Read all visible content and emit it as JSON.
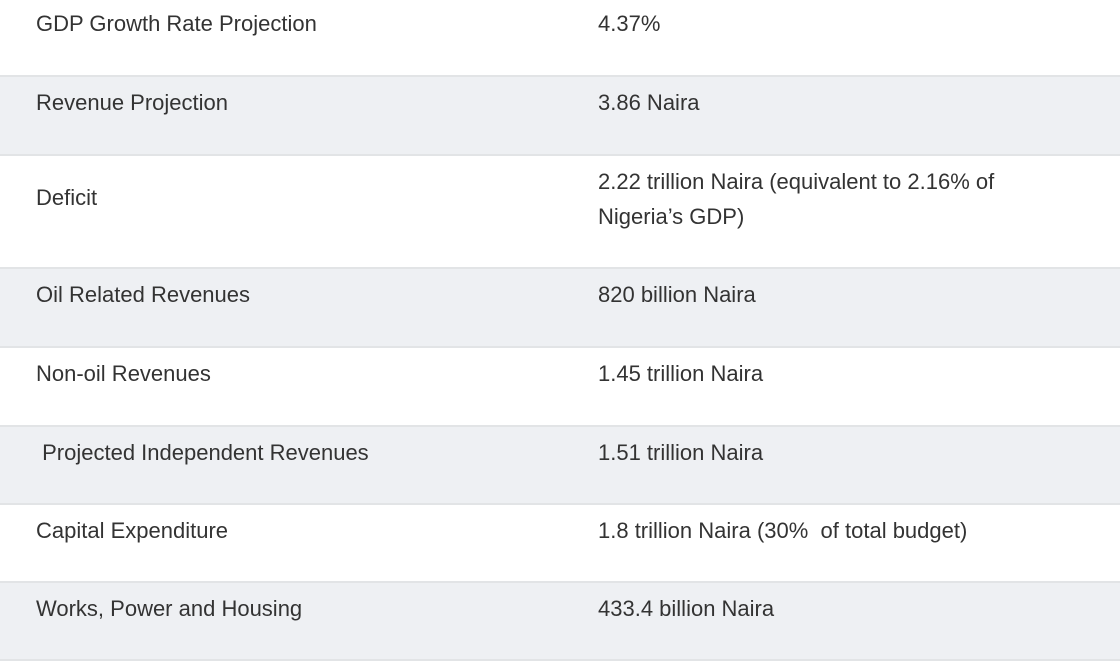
{
  "rows": [
    {
      "label": "GDP Growth Rate Projection",
      "value": "4.37%"
    },
    {
      "label": "Revenue Projection",
      "value": "3.86 Naira"
    },
    {
      "label": "Deficit",
      "value": "2.22 trillion Naira (equivalent to 2.16% of Nigeria’s GDP)"
    },
    {
      "label": "Oil Related Revenues",
      "value": "820 billion Naira"
    },
    {
      "label": "Non-oil Revenues",
      "value": "1.45 trillion Naira"
    },
    {
      "label": " Projected Independent Revenues",
      "value": "1.51 trillion Naira"
    },
    {
      "label": "Capital Expenditure",
      "value": "1.8 trillion Naira (30%  of total budget)"
    },
    {
      "label": "Works, Power and Housing",
      "value": "433.4 billion Naira"
    }
  ]
}
